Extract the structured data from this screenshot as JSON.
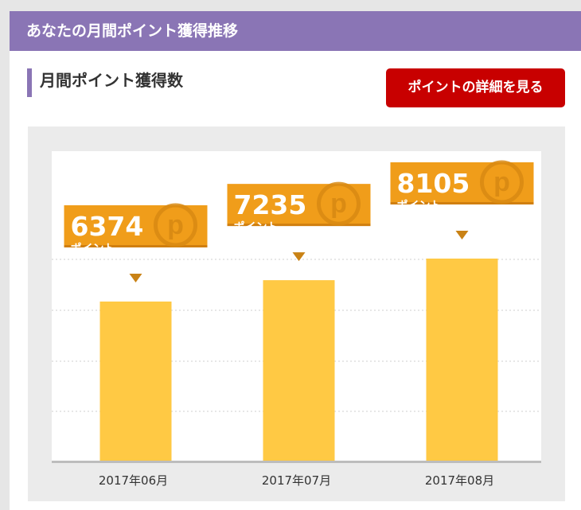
{
  "header": {
    "title": "あなたの月間ポイント獲得推移"
  },
  "section": {
    "title": "月間ポイント獲得数"
  },
  "detail_button": {
    "label": "ポイントの詳細を見る"
  },
  "colors": {
    "header_bg": "#8a75b5",
    "button_bg": "#c80000",
    "bar": "#ffc944",
    "callout": "#f09d1a"
  },
  "chart_data": {
    "type": "bar",
    "categories": [
      "2017年06月",
      "2017年07月",
      "2017年08月"
    ],
    "values": [
      6374,
      7235,
      8105
    ],
    "data_label_unit": "ポイント",
    "badge_icon": "p-coin-icon",
    "ylim": [
      0,
      10000
    ],
    "grid": true
  }
}
